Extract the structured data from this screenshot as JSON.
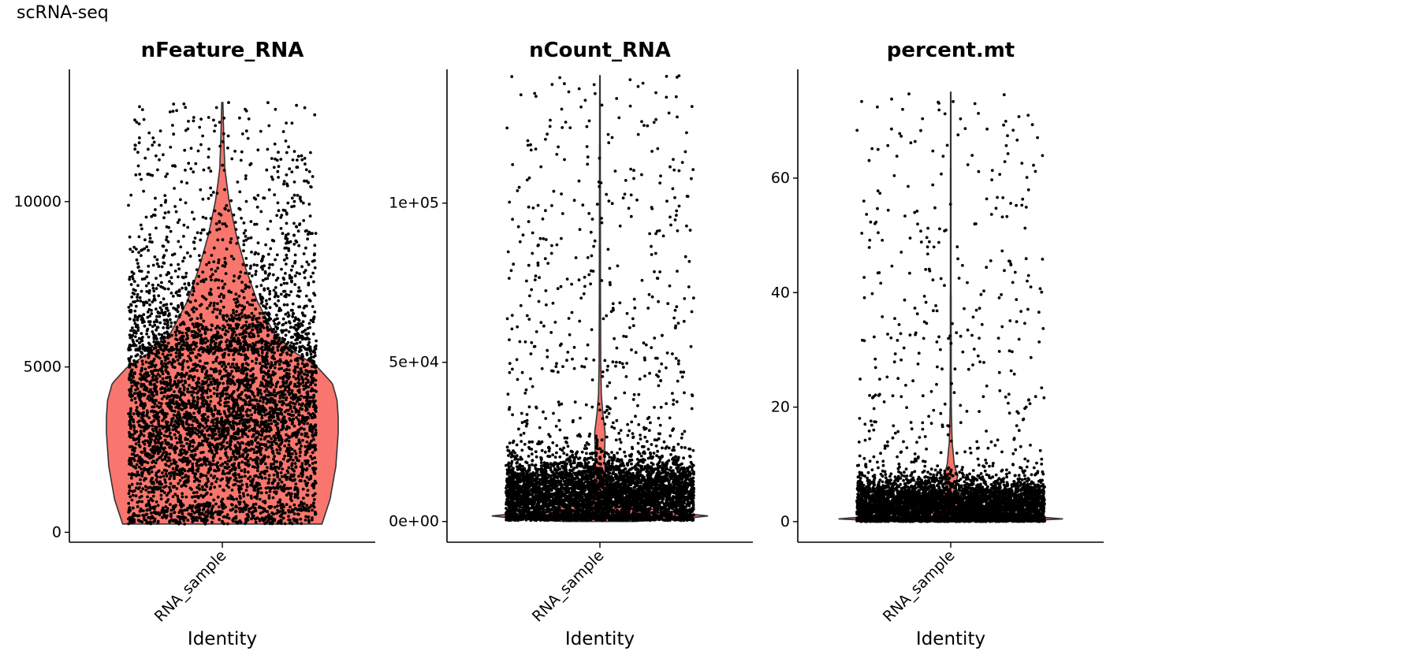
{
  "page": {
    "title": "scRNA-seq"
  },
  "chart_data": [
    {
      "type": "violin",
      "title": "nFeature_RNA",
      "xlabel": "Identity",
      "ylabel": "",
      "categories": [
        "RNA_sample"
      ],
      "ylim": [
        -300,
        14000
      ],
      "yticks": [
        0,
        5000,
        10000
      ],
      "ytick_labels": [
        "0",
        "5000",
        "10000"
      ],
      "fill_color": "#F8766D",
      "point_color": "#000000",
      "violin_data_max": 13000,
      "density_profile": [
        [
          250,
          0.86
        ],
        [
          1000,
          0.93
        ],
        [
          2000,
          0.98
        ],
        [
          3000,
          1.0
        ],
        [
          3500,
          1.0
        ],
        [
          4000,
          0.99
        ],
        [
          4500,
          0.95
        ],
        [
          5000,
          0.82
        ],
        [
          5500,
          0.6
        ],
        [
          6000,
          0.45
        ],
        [
          7000,
          0.3
        ],
        [
          8000,
          0.2
        ],
        [
          9000,
          0.12
        ],
        [
          10000,
          0.06
        ],
        [
          10500,
          0.04
        ],
        [
          11000,
          0.022
        ],
        [
          12000,
          0.012
        ],
        [
          13000,
          0.005
        ]
      ],
      "points": {
        "count": 5200,
        "min": 250,
        "center": 3500,
        "spread": 2000,
        "tail": 0.18,
        "max": 13000
      }
    },
    {
      "type": "violin",
      "title": "nCount_RNA",
      "xlabel": "Identity",
      "ylabel": "",
      "categories": [
        "RNA_sample"
      ],
      "ylim": [
        -6500,
        142000
      ],
      "yticks": [
        0,
        50000,
        100000
      ],
      "ytick_labels": [
        "0e+00",
        "5e+04",
        "1e+05"
      ],
      "fill_color": "#F8766D",
      "point_color": "#000000",
      "violin_data_max": 140000,
      "density_profile": [
        [
          0,
          0.3
        ],
        [
          1500,
          1.0
        ],
        [
          3000,
          0.6
        ],
        [
          6000,
          0.1
        ],
        [
          12000,
          0.05
        ],
        [
          20000,
          0.04
        ],
        [
          28000,
          0.045
        ],
        [
          34000,
          0.025
        ],
        [
          40000,
          0.012
        ],
        [
          50000,
          0.007
        ],
        [
          70000,
          0.005
        ],
        [
          100000,
          0.004
        ],
        [
          140000,
          0.002
        ]
      ],
      "points": {
        "count": 5200,
        "min": 300,
        "center": 8000,
        "spread": 6000,
        "tail": 0.12,
        "max": 140000
      }
    },
    {
      "type": "violin",
      "title": "percent.mt",
      "xlabel": "Identity",
      "ylabel": "",
      "categories": [
        "RNA_sample"
      ],
      "ylim": [
        -3.6,
        79
      ],
      "yticks": [
        0,
        20,
        40,
        60
      ],
      "ytick_labels": [
        "0",
        "20",
        "40",
        "60"
      ],
      "fill_color": "#F8766D",
      "point_color": "#000000",
      "violin_data_max": 75,
      "density_profile": [
        [
          0,
          0.5
        ],
        [
          0.5,
          1.0
        ],
        [
          1.2,
          0.5
        ],
        [
          3,
          0.1
        ],
        [
          6,
          0.04
        ],
        [
          8,
          0.06
        ],
        [
          10,
          0.03
        ],
        [
          14,
          0.012
        ],
        [
          20,
          0.005
        ],
        [
          40,
          0.003
        ],
        [
          75,
          0.002
        ]
      ],
      "points": {
        "count": 5200,
        "min": 0,
        "center": 2.5,
        "spread": 2.5,
        "tail": 0.1,
        "max": 75
      }
    }
  ]
}
